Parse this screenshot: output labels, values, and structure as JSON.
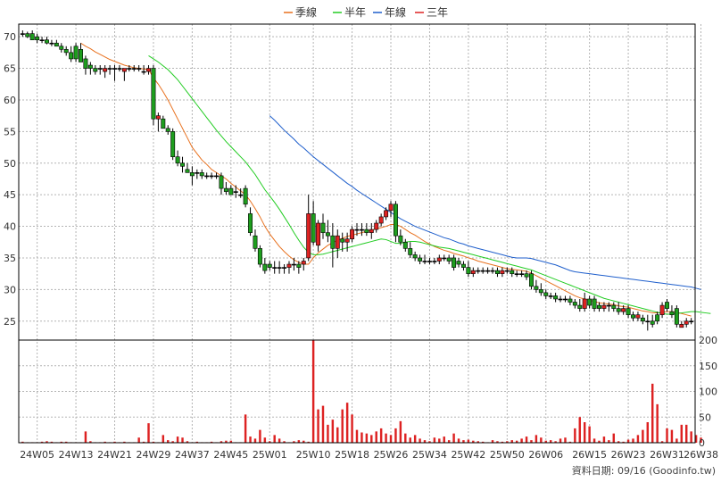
{
  "chart_data": {
    "type": "candlestick",
    "legend": [
      {
        "name": "季線",
        "color": "#E8711E"
      },
      {
        "name": "半年",
        "color": "#22CC22"
      },
      {
        "name": "年線",
        "color": "#1F5FCC"
      },
      {
        "name": "三年",
        "color": "#DD2222"
      }
    ],
    "legend_position": "top-center",
    "grid": true,
    "colors": {
      "up": "#DD2222",
      "down": "#1E9E1E",
      "neutral": "#000000",
      "volume": "#DD2222"
    },
    "price_axis": {
      "ticks": [
        25,
        30,
        35,
        40,
        45,
        50,
        55,
        60,
        65,
        70
      ],
      "ylim": [
        22,
        72
      ],
      "side": "left"
    },
    "volume_axis": {
      "ticks": [
        0,
        50,
        100,
        150,
        200
      ],
      "ylim": [
        0,
        200
      ],
      "side": "right"
    },
    "x_tick_labels": [
      {
        "label": "24W05",
        "index": 3
      },
      {
        "label": "24W13",
        "index": 11
      },
      {
        "label": "24W21",
        "index": 19
      },
      {
        "label": "24W29",
        "index": 27
      },
      {
        "label": "24W37",
        "index": 35
      },
      {
        "label": "24W45",
        "index": 43
      },
      {
        "label": "25W01",
        "index": 51
      },
      {
        "label": "25W10",
        "index": 60
      },
      {
        "label": "25W18",
        "index": 68
      },
      {
        "label": "25W26",
        "index": 76
      },
      {
        "label": "25W34",
        "index": 84
      },
      {
        "label": "25W42",
        "index": 92
      },
      {
        "label": "25W50",
        "index": 100
      },
      {
        "label": "26W06",
        "index": 108
      },
      {
        "label": "26W15",
        "index": 117
      },
      {
        "label": "26W23",
        "index": 125
      },
      {
        "label": "26W31",
        "index": 133
      },
      {
        "label": "26W38",
        "index": 140
      }
    ],
    "ohlc": [
      [
        70.5,
        71.0,
        70.0,
        70.5
      ],
      [
        70.5,
        70.8,
        69.8,
        70.0
      ],
      [
        70.5,
        71.0,
        69.5,
        69.5
      ],
      [
        70.0,
        70.5,
        69.0,
        69.5
      ],
      [
        69.5,
        70.0,
        69.0,
        69.5
      ],
      [
        69.5,
        70.0,
        68.8,
        69.0
      ],
      [
        69.0,
        69.5,
        68.5,
        69.0
      ],
      [
        69.0,
        69.5,
        68.5,
        68.5
      ],
      [
        68.5,
        69.0,
        67.5,
        68.0
      ],
      [
        68.0,
        68.5,
        67.0,
        67.5
      ],
      [
        67.5,
        68.5,
        66.0,
        66.5
      ],
      [
        68.5,
        69.0,
        66.0,
        66.5
      ],
      [
        68.0,
        69.0,
        66.0,
        66.0
      ],
      [
        66.5,
        67.0,
        64.0,
        65.0
      ],
      [
        65.5,
        66.0,
        64.0,
        65.0
      ],
      [
        65.0,
        65.5,
        64.0,
        64.5
      ],
      [
        65.0,
        65.5,
        64.0,
        65.0
      ],
      [
        64.5,
        65.5,
        63.5,
        65.0
      ],
      [
        65.0,
        65.5,
        64.0,
        65.0
      ],
      [
        65.0,
        65.5,
        63.0,
        65.0
      ],
      [
        65.0,
        65.5,
        64.5,
        65.0
      ],
      [
        64.5,
        65.0,
        63.0,
        65.0
      ],
      [
        65.0,
        65.5,
        64.5,
        65.0
      ],
      [
        65.0,
        65.5,
        64.5,
        65.0
      ],
      [
        65.0,
        65.5,
        64.5,
        65.0
      ],
      [
        64.5,
        65.5,
        64.0,
        64.5
      ],
      [
        64.5,
        65.5,
        64.0,
        65.0
      ],
      [
        65.0,
        65.5,
        56.0,
        57.0
      ],
      [
        57.0,
        58.0,
        55.0,
        57.5
      ],
      [
        57.0,
        57.5,
        55.5,
        55.5
      ],
      [
        55.5,
        56.0,
        54.5,
        55.0
      ],
      [
        55.0,
        55.5,
        50.5,
        51.0
      ],
      [
        51.0,
        52.0,
        49.5,
        50.0
      ],
      [
        50.0,
        51.0,
        48.5,
        49.5
      ],
      [
        49.0,
        50.0,
        48.5,
        48.5
      ],
      [
        48.5,
        49.5,
        46.5,
        48.0
      ],
      [
        48.5,
        49.0,
        47.5,
        48.5
      ],
      [
        48.5,
        49.0,
        47.5,
        48.0
      ],
      [
        48.0,
        48.5,
        47.5,
        48.0
      ],
      [
        48.0,
        48.5,
        47.5,
        48.0
      ],
      [
        48.0,
        48.5,
        47.5,
        48.0
      ],
      [
        48.0,
        48.5,
        45.0,
        46.0
      ],
      [
        46.0,
        47.0,
        45.0,
        45.5
      ],
      [
        46.0,
        46.5,
        45.0,
        45.0
      ],
      [
        45.5,
        46.5,
        44.5,
        45.5
      ],
      [
        45.0,
        46.0,
        44.5,
        45.0
      ],
      [
        46.0,
        46.5,
        43.0,
        43.5
      ],
      [
        42.0,
        43.0,
        38.5,
        39.0
      ],
      [
        38.5,
        39.5,
        36.0,
        36.5
      ],
      [
        36.5,
        37.0,
        33.5,
        34.0
      ],
      [
        34.0,
        35.0,
        32.5,
        33.0
      ],
      [
        34.0,
        34.5,
        33.0,
        33.5
      ],
      [
        33.5,
        34.5,
        32.5,
        33.5
      ],
      [
        33.5,
        34.5,
        32.5,
        33.5
      ],
      [
        33.5,
        34.0,
        32.5,
        33.5
      ],
      [
        33.5,
        34.5,
        32.5,
        34.0
      ],
      [
        34.0,
        35.0,
        33.0,
        34.0
      ],
      [
        34.0,
        34.5,
        32.5,
        33.5
      ],
      [
        34.0,
        35.0,
        33.0,
        34.5
      ],
      [
        35.0,
        45.0,
        34.5,
        42.0
      ],
      [
        42.0,
        44.0,
        37.0,
        37.5
      ],
      [
        37.0,
        41.0,
        36.0,
        40.5
      ],
      [
        40.5,
        42.0,
        38.0,
        39.0
      ],
      [
        39.0,
        41.0,
        37.5,
        38.5
      ],
      [
        38.5,
        40.5,
        33.5,
        36.5
      ],
      [
        36.5,
        39.5,
        35.0,
        38.5
      ],
      [
        38.0,
        39.0,
        36.0,
        37.5
      ],
      [
        37.5,
        39.0,
        36.0,
        38.0
      ],
      [
        38.0,
        40.0,
        37.5,
        39.5
      ],
      [
        39.5,
        40.5,
        38.5,
        39.5
      ],
      [
        39.5,
        40.5,
        38.5,
        39.5
      ],
      [
        39.5,
        40.5,
        38.5,
        39.0
      ],
      [
        39.0,
        40.5,
        38.0,
        39.5
      ],
      [
        39.5,
        41.0,
        39.0,
        40.5
      ],
      [
        40.5,
        42.0,
        40.0,
        41.5
      ],
      [
        41.5,
        43.0,
        41.0,
        42.5
      ],
      [
        42.5,
        44.0,
        41.5,
        43.5
      ],
      [
        43.5,
        44.0,
        37.5,
        38.5
      ],
      [
        38.5,
        39.5,
        37.0,
        37.5
      ],
      [
        37.5,
        38.0,
        36.0,
        36.5
      ],
      [
        36.5,
        37.5,
        35.0,
        35.5
      ],
      [
        35.5,
        36.0,
        34.5,
        35.0
      ],
      [
        35.0,
        35.5,
        34.0,
        34.5
      ],
      [
        34.5,
        35.5,
        34.0,
        34.5
      ],
      [
        34.5,
        35.0,
        34.0,
        34.5
      ],
      [
        34.5,
        35.0,
        34.0,
        34.5
      ],
      [
        34.5,
        35.5,
        34.0,
        35.0
      ],
      [
        35.0,
        35.5,
        34.5,
        35.0
      ],
      [
        35.0,
        35.5,
        34.0,
        34.5
      ],
      [
        35.0,
        35.5,
        33.0,
        33.5
      ],
      [
        34.5,
        35.0,
        33.5,
        34.0
      ],
      [
        34.0,
        34.5,
        33.0,
        33.5
      ],
      [
        33.5,
        34.5,
        32.0,
        32.5
      ],
      [
        32.5,
        33.5,
        32.0,
        33.0
      ],
      [
        33.0,
        33.5,
        32.5,
        33.0
      ],
      [
        33.0,
        33.5,
        32.5,
        33.0
      ],
      [
        33.0,
        33.5,
        32.5,
        33.0
      ],
      [
        33.0,
        33.5,
        32.5,
        33.0
      ],
      [
        33.0,
        33.5,
        32.0,
        32.5
      ],
      [
        32.5,
        33.5,
        32.0,
        33.0
      ],
      [
        33.0,
        33.5,
        32.5,
        33.0
      ],
      [
        33.0,
        33.5,
        32.0,
        32.5
      ],
      [
        32.5,
        33.0,
        32.0,
        32.5
      ],
      [
        32.5,
        33.0,
        32.0,
        32.5
      ],
      [
        32.5,
        33.0,
        31.5,
        32.0
      ],
      [
        32.5,
        33.0,
        30.0,
        30.5
      ],
      [
        30.5,
        31.5,
        29.5,
        30.0
      ],
      [
        30.0,
        31.0,
        29.0,
        29.5
      ],
      [
        29.5,
        30.0,
        28.5,
        29.0
      ],
      [
        29.0,
        29.5,
        28.5,
        29.0
      ],
      [
        29.0,
        29.5,
        28.0,
        28.5
      ],
      [
        28.5,
        29.0,
        28.0,
        28.5
      ],
      [
        28.5,
        29.0,
        28.0,
        28.5
      ],
      [
        28.5,
        29.0,
        27.5,
        28.0
      ],
      [
        28.0,
        28.5,
        27.0,
        27.5
      ],
      [
        27.5,
        28.5,
        26.5,
        27.0
      ],
      [
        27.0,
        29.5,
        26.5,
        28.5
      ],
      [
        28.5,
        29.0,
        27.0,
        27.5
      ],
      [
        28.5,
        29.0,
        26.5,
        27.0
      ],
      [
        27.5,
        28.0,
        26.5,
        27.0
      ],
      [
        27.0,
        28.0,
        26.5,
        27.5
      ],
      [
        27.5,
        28.0,
        26.5,
        27.5
      ],
      [
        27.5,
        28.0,
        26.5,
        27.0
      ],
      [
        27.0,
        28.0,
        26.0,
        26.5
      ],
      [
        26.5,
        27.5,
        26.0,
        27.0
      ],
      [
        27.0,
        27.5,
        25.5,
        26.0
      ],
      [
        26.0,
        26.5,
        25.0,
        25.5
      ],
      [
        25.5,
        26.5,
        25.0,
        26.0
      ],
      [
        25.5,
        26.0,
        24.5,
        25.0
      ],
      [
        25.0,
        26.0,
        23.5,
        25.0
      ],
      [
        25.0,
        26.0,
        24.0,
        24.5
      ],
      [
        26.0,
        26.5,
        24.5,
        25.0
      ],
      [
        26.0,
        28.0,
        25.5,
        27.5
      ],
      [
        28.0,
        28.5,
        26.5,
        27.0
      ],
      [
        26.5,
        27.5,
        25.5,
        26.0
      ],
      [
        27.0,
        27.5,
        24.0,
        24.5
      ],
      [
        24.0,
        25.0,
        24.0,
        24.5
      ],
      [
        24.5,
        25.5,
        24.0,
        25.0
      ],
      [
        25.0,
        25.5,
        24.5,
        25.0
      ]
    ],
    "volume": [
      2,
      1,
      1,
      1,
      2,
      3,
      2,
      1,
      2,
      2,
      1,
      1,
      1,
      22,
      3,
      1,
      1,
      2,
      1,
      2,
      1,
      2,
      1,
      1,
      10,
      2,
      38,
      2,
      1,
      15,
      5,
      3,
      12,
      10,
      3,
      1,
      2,
      1,
      1,
      2,
      1,
      3,
      4,
      4,
      1,
      1,
      55,
      12,
      8,
      25,
      10,
      3,
      15,
      8,
      3,
      1,
      3,
      5,
      4,
      2,
      200,
      65,
      72,
      35,
      45,
      30,
      65,
      78,
      55,
      25,
      20,
      18,
      15,
      22,
      28,
      18,
      15,
      28,
      42,
      18,
      10,
      15,
      8,
      5,
      3,
      10,
      8,
      12,
      5,
      18,
      8,
      5,
      6,
      4,
      3,
      2,
      1,
      5,
      3,
      2,
      3,
      5,
      4,
      8,
      12,
      5,
      15,
      10,
      4,
      5,
      3,
      8,
      10,
      2,
      28,
      50,
      40,
      32,
      8,
      4,
      12,
      5,
      18,
      3,
      2,
      6,
      8,
      15,
      25,
      40,
      115,
      75,
      3,
      28,
      25,
      8,
      35,
      35,
      22,
      15,
      10
    ],
    "moving_averages": {
      "季線": [
        null,
        null,
        null,
        null,
        null,
        null,
        null,
        null,
        null,
        null,
        null,
        null,
        69.0,
        68.5,
        68.1,
        67.6,
        67.2,
        66.8,
        66.4,
        66.1,
        65.8,
        65.5,
        65.3,
        65.1,
        65.0,
        64.9,
        64.8,
        63.5,
        62.5,
        61.3,
        60.0,
        58.5,
        57.0,
        55.5,
        54.0,
        52.5,
        51.5,
        50.5,
        49.8,
        49.0,
        48.5,
        48.0,
        47.5,
        46.8,
        46.2,
        45.6,
        45.0,
        44.0,
        42.8,
        41.5,
        40.0,
        38.8,
        37.8,
        36.8,
        36.0,
        35.3,
        34.7,
        34.3,
        34.0,
        34.0,
        35.0,
        35.8,
        36.4,
        37.0,
        37.4,
        37.8,
        38.1,
        38.4,
        38.6,
        38.8,
        39.0,
        39.2,
        39.4,
        39.6,
        39.8,
        40.0,
        40.3,
        40.3,
        40.0,
        39.5,
        39.0,
        38.6,
        38.1,
        37.6,
        37.2,
        36.8,
        36.5,
        36.2,
        36.0,
        35.7,
        35.5,
        35.3,
        35.0,
        34.8,
        34.5,
        34.3,
        34.1,
        33.9,
        33.7,
        33.5,
        33.3,
        33.2,
        33.1,
        33.0,
        32.9,
        32.6,
        32.2,
        31.8,
        31.4,
        31.0,
        30.6,
        30.2,
        29.8,
        29.4,
        29.0,
        28.7,
        28.5,
        28.3,
        28.1,
        27.9,
        27.8,
        27.7,
        27.6,
        27.4,
        27.3,
        27.2,
        27.0,
        26.8,
        26.6,
        26.5,
        26.3,
        26.3,
        26.4,
        26.5,
        26.5,
        26.4,
        26.2,
        26.0,
        25.8
      ],
      "半年": [
        null,
        null,
        null,
        null,
        null,
        null,
        null,
        null,
        null,
        null,
        null,
        null,
        null,
        null,
        null,
        null,
        null,
        null,
        null,
        null,
        null,
        null,
        null,
        null,
        null,
        null,
        67.0,
        66.5,
        66.0,
        65.4,
        64.8,
        64.0,
        63.2,
        62.2,
        61.2,
        60.2,
        59.2,
        58.2,
        57.2,
        56.2,
        55.2,
        54.3,
        53.4,
        52.6,
        51.8,
        51.0,
        50.2,
        49.2,
        48.2,
        47.0,
        45.8,
        44.8,
        43.8,
        42.7,
        41.5,
        40.3,
        39.0,
        37.8,
        36.7,
        35.9,
        35.5,
        35.5,
        35.6,
        35.8,
        36.0,
        36.2,
        36.4,
        36.6,
        36.8,
        37.0,
        37.2,
        37.4,
        37.6,
        37.8,
        38.0,
        37.9,
        37.6,
        37.3,
        37.3,
        37.5,
        37.6,
        37.6,
        37.5,
        37.3,
        37.1,
        36.9,
        36.7,
        36.6,
        36.5,
        36.3,
        36.1,
        35.9,
        35.7,
        35.5,
        35.3,
        35.1,
        34.9,
        34.7,
        34.5,
        34.3,
        34.1,
        33.9,
        33.7,
        33.5,
        33.3,
        33.1,
        32.8,
        32.5,
        32.2,
        31.9,
        31.6,
        31.3,
        31.0,
        30.7,
        30.4,
        30.1,
        29.8,
        29.5,
        29.2,
        28.9,
        28.6,
        28.4,
        28.2,
        28.0,
        27.8,
        27.6,
        27.4,
        27.2,
        27.0,
        26.8,
        26.6,
        26.4,
        26.2,
        26.1,
        26.1,
        26.2,
        26.3,
        26.4,
        26.5,
        26.5,
        26.4,
        26.3,
        26.2
      ],
      "年線": [
        null,
        null,
        null,
        null,
        null,
        null,
        null,
        null,
        null,
        null,
        null,
        null,
        null,
        null,
        null,
        null,
        null,
        null,
        null,
        null,
        null,
        null,
        null,
        null,
        null,
        null,
        null,
        null,
        null,
        null,
        null,
        null,
        null,
        null,
        null,
        null,
        null,
        null,
        null,
        null,
        null,
        null,
        null,
        null,
        null,
        null,
        null,
        null,
        null,
        null,
        null,
        57.5,
        56.8,
        56.0,
        55.2,
        54.5,
        53.8,
        53.0,
        52.4,
        51.7,
        51.0,
        50.4,
        49.8,
        49.2,
        48.6,
        48.0,
        47.4,
        46.8,
        46.3,
        45.7,
        45.2,
        44.7,
        44.2,
        43.7,
        43.2,
        42.7,
        42.2,
        41.7,
        41.2,
        40.8,
        40.4,
        40.0,
        39.7,
        39.4,
        39.1,
        38.8,
        38.5,
        38.2,
        38.0,
        37.7,
        37.4,
        37.2,
        36.9,
        36.7,
        36.5,
        36.3,
        36.1,
        35.9,
        35.7,
        35.5,
        35.3,
        35.1,
        35.0,
        35.0,
        35.0,
        34.9,
        34.7,
        34.5,
        34.3,
        34.1,
        33.9,
        33.6,
        33.3,
        33.0,
        32.8,
        32.7,
        32.6,
        32.5,
        32.4,
        32.3,
        32.2,
        32.1,
        32.0,
        31.9,
        31.8,
        31.7,
        31.6,
        31.5,
        31.4,
        31.3,
        31.2,
        31.1,
        31.0,
        30.9,
        30.8,
        30.7,
        30.6,
        30.5,
        30.4,
        30.2,
        30.0
      ],
      "三年": []
    }
  },
  "legend_labels": [
    "季線",
    "半年",
    "年線",
    "三年"
  ],
  "source_text": "資料日期: 09/16  (Goodinfo.tw)"
}
